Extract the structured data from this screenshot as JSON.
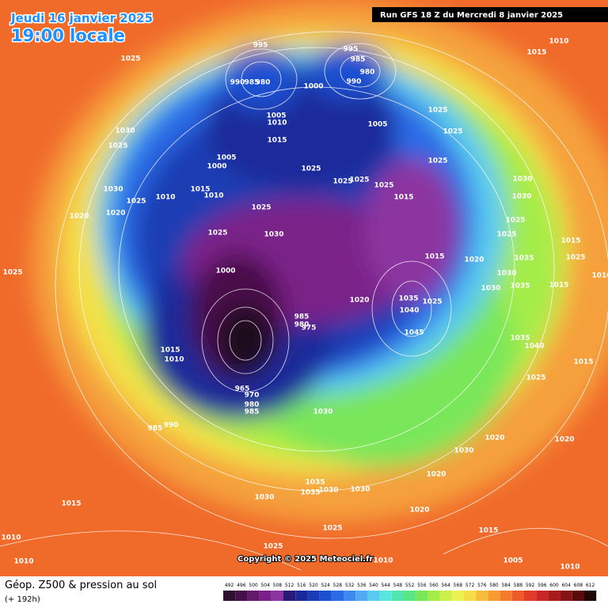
{
  "header": {
    "date": "Jeudi 16 janvier 2025",
    "time": "19:00 locale",
    "run": "Run GFS 18 Z du Mercredi 8 janvier 2025"
  },
  "copyright": "Copyright © 2025 Meteociel.fr",
  "legend": {
    "title": "Géop. Z500 & pression au sol",
    "subtitle": "(+ 192h)",
    "scale": [
      492,
      496,
      500,
      504,
      508,
      512,
      516,
      520,
      524,
      528,
      532,
      536,
      540,
      544,
      548,
      552,
      556,
      560,
      564,
      568,
      572,
      576,
      580,
      584,
      588,
      592,
      596,
      600,
      604,
      608,
      612
    ],
    "colors": [
      "#301030",
      "#48104a",
      "#641a6c",
      "#7a2088",
      "#8c34a0",
      "#2a1a78",
      "#1a2a9a",
      "#1a3cb4",
      "#1a50d0",
      "#2a6ae6",
      "#3c8af0",
      "#50aaf4",
      "#5acaf0",
      "#5ae6e0",
      "#50e6b0",
      "#5ae682",
      "#7ae65a",
      "#a4ec4a",
      "#ccf04a",
      "#ecf050",
      "#f6dc46",
      "#f6bc3c",
      "#f69c32",
      "#f27c2c",
      "#ee5a2a",
      "#e23c28",
      "#c82828",
      "#a81c1c",
      "#861414",
      "#5a0c0c",
      "#200808"
    ]
  },
  "isobar_labels": [
    995,
    990,
    985,
    980,
    995,
    985,
    980,
    990,
    1000,
    1025,
    1010,
    1015,
    1030,
    1025,
    1005,
    1010,
    1005,
    1025,
    1025,
    1015,
    1005,
    1000,
    1025,
    1025,
    1025,
    1025,
    1025,
    1030,
    1015,
    1010,
    1010,
    1025,
    1020,
    1020,
    1025,
    1015,
    1030,
    1030,
    1025,
    1025,
    1025,
    1030,
    1015,
    1025,
    1035,
    1015,
    1020,
    1025,
    1000,
    1030,
    1010,
    1015,
    1035,
    1030,
    1020,
    1035,
    1025,
    1040,
    985,
    980,
    975,
    1045,
    1035,
    1040,
    1015,
    1010,
    1015,
    1025,
    965,
    970,
    980,
    985,
    1030,
    985,
    990,
    1020,
    1020,
    1030,
    1020,
    1035,
    1035,
    1030,
    1030,
    1015,
    1030,
    1020,
    1025,
    1015,
    1010,
    1025,
    1010,
    1005,
    1010,
    1010
  ]
}
